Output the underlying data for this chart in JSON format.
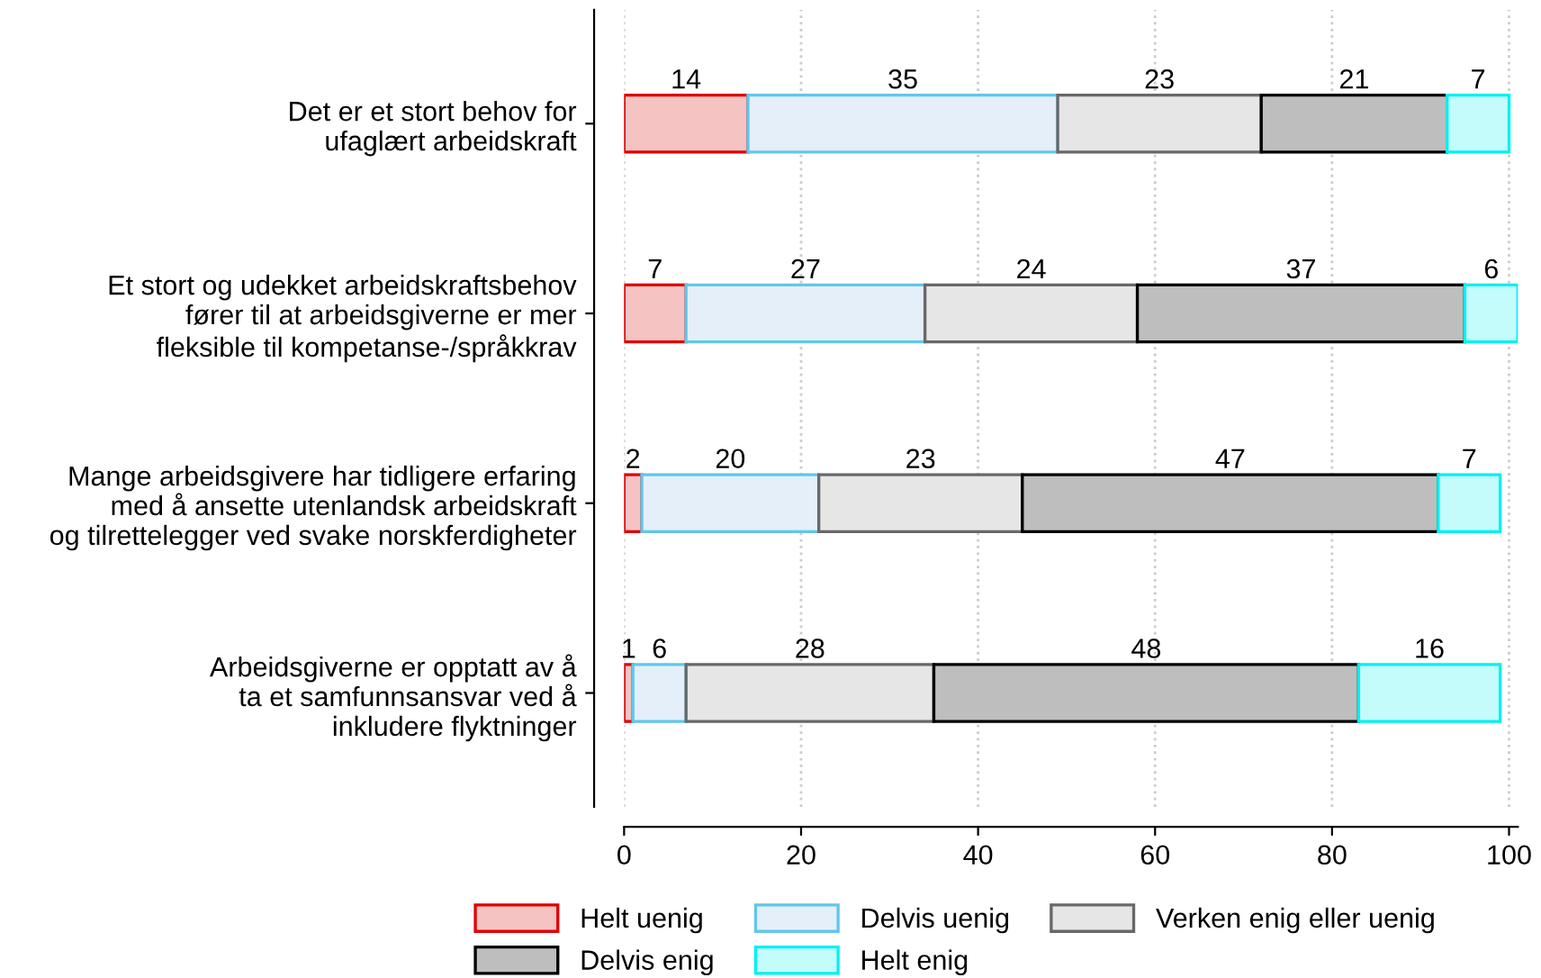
{
  "chart_data": {
    "type": "bar",
    "orientation": "horizontal",
    "stacked": true,
    "data_labels": true,
    "categories": [
      "Det er et stort behov for\nufaglært arbeidskraft",
      "Et stort og udekket arbeidskraftsbehov\nfører til at arbeidsgiverne er mer\nfleksible til kompetanse-/språkkrav",
      "Mange arbeidsgivere har tidligere erfaring\nmed å ansette utenlandsk arbeidskraft\nog tilrettelegger ved svake norskferdigheter",
      "Arbeidsgiverne er opptatt av å\nta et samfunnsansvar ved å\ninkludere flyktninger"
    ],
    "series": [
      {
        "name": "Helt uenig",
        "color": "#f6c3c3",
        "values": [
          14,
          7,
          2,
          1
        ]
      },
      {
        "name": "Delvis uenig",
        "color": "#e4eff9",
        "values": [
          35,
          27,
          20,
          6
        ]
      },
      {
        "name": "Verken enig eller uenig",
        "color": "#e6e6e6",
        "values": [
          23,
          24,
          23,
          28
        ]
      },
      {
        "name": "Delvis enig",
        "color": "#bebebe",
        "values": [
          21,
          37,
          47,
          48
        ]
      },
      {
        "name": "Helt enig",
        "color": "#c4fbfb",
        "values": [
          7,
          6,
          7,
          16
        ]
      }
    ],
    "xlim": [
      0,
      101
    ],
    "xticks": [
      0,
      20,
      40,
      60,
      80,
      100
    ],
    "grid": "x",
    "legend": "bottom"
  }
}
